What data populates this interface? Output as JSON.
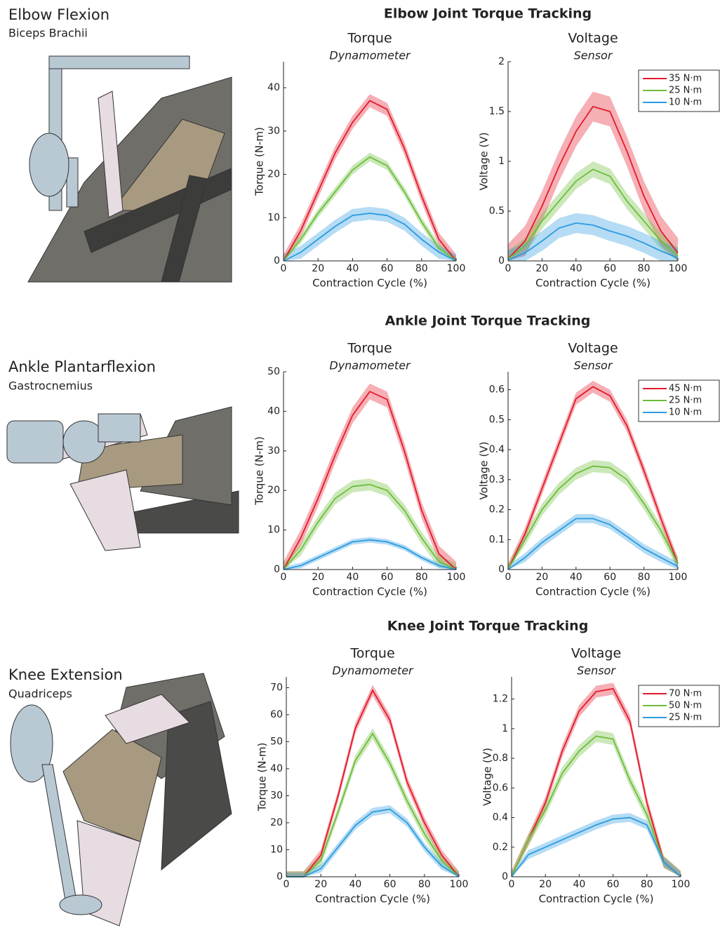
{
  "rows": [
    {
      "heading": "Elbow Joint Torque Tracking",
      "joint": "Elbow Flexion",
      "muscle": "Biceps Brachii"
    },
    {
      "heading": "Ankle Joint Torque Tracking",
      "joint": "Ankle Plantarflexion",
      "muscle": "Gastrocnemius"
    },
    {
      "heading": "Knee Joint Torque Tracking",
      "joint": "Knee Extension",
      "muscle": "Quadriceps"
    }
  ],
  "chart_data": [
    {
      "type": "line",
      "title": "Torque",
      "subtitle": "Dynamometer",
      "xlabel": "Contraction Cycle (%)",
      "ylabel": "Torque (N-m)",
      "x": [
        0,
        10,
        20,
        30,
        40,
        50,
        60,
        70,
        80,
        90,
        100
      ],
      "xlim": [
        0,
        100
      ],
      "xticks": [
        0,
        20,
        40,
        60,
        80,
        100
      ],
      "ylim": [
        0,
        46
      ],
      "yticks": [
        0,
        10,
        20,
        30,
        40
      ],
      "series": [
        {
          "color": "#e31a2a",
          "values": [
            0,
            7,
            16,
            25,
            32,
            37,
            35,
            26,
            15,
            5,
            0
          ],
          "error": 1.5
        },
        {
          "color": "#6cbd3a",
          "values": [
            0,
            5,
            11,
            16,
            21,
            24,
            22,
            16,
            9,
            3,
            0
          ],
          "error": 1
        },
        {
          "color": "#2b9be0",
          "values": [
            0,
            2,
            5,
            8,
            10.5,
            11,
            10.5,
            8.5,
            5,
            2,
            0
          ],
          "error": 1.5
        }
      ]
    },
    {
      "type": "line",
      "title": "Voltage",
      "subtitle": "Sensor",
      "xlabel": "Contraction Cycle (%)",
      "ylabel": "Voltage (V)",
      "legend": "upper right",
      "x": [
        0,
        10,
        20,
        30,
        40,
        50,
        60,
        70,
        80,
        90,
        100
      ],
      "xlim": [
        0,
        100
      ],
      "xticks": [
        0,
        20,
        40,
        60,
        80,
        100
      ],
      "ylim": [
        0,
        2
      ],
      "yticks": [
        0,
        0.5,
        1,
        1.5,
        2
      ],
      "series": [
        {
          "name": "35 N·m",
          "color": "#e31a2a",
          "values": [
            0.02,
            0.2,
            0.55,
            0.95,
            1.3,
            1.55,
            1.5,
            1.1,
            0.65,
            0.3,
            0.08
          ],
          "error": 0.15
        },
        {
          "name": "25 N·m",
          "color": "#6cbd3a",
          "values": [
            0.02,
            0.15,
            0.4,
            0.6,
            0.8,
            0.92,
            0.85,
            0.6,
            0.4,
            0.2,
            0.05
          ],
          "error": 0.08
        },
        {
          "name": "10 N·m",
          "color": "#2b9be0",
          "values": [
            0.01,
            0.08,
            0.2,
            0.33,
            0.38,
            0.36,
            0.3,
            0.25,
            0.18,
            0.1,
            0.03
          ],
          "error": 0.1
        }
      ]
    },
    {
      "type": "line",
      "title": "Torque",
      "subtitle": "Dynamometer",
      "xlabel": "Contraction Cycle (%)",
      "ylabel": "Torque (N-m)",
      "x": [
        0,
        10,
        20,
        30,
        40,
        50,
        60,
        70,
        80,
        90,
        100
      ],
      "xlim": [
        0,
        100
      ],
      "xticks": [
        0,
        20,
        40,
        60,
        80,
        100
      ],
      "ylim": [
        0,
        50
      ],
      "yticks": [
        0,
        10,
        20,
        30,
        40,
        50
      ],
      "series": [
        {
          "color": "#e31a2a",
          "values": [
            0,
            8,
            18,
            29,
            39,
            45,
            43,
            30,
            15,
            4,
            0
          ],
          "error": 2
        },
        {
          "color": "#6cbd3a",
          "values": [
            0,
            5,
            12,
            18,
            21,
            21.5,
            20,
            15,
            8,
            2,
            0
          ],
          "error": 1.5
        },
        {
          "color": "#2b9be0",
          "values": [
            0,
            1,
            3,
            5,
            7,
            7.5,
            7,
            5.5,
            3,
            1,
            0
          ],
          "error": 0.7
        }
      ]
    },
    {
      "type": "line",
      "title": "Voltage",
      "subtitle": "Sensor",
      "xlabel": "Contraction Cycle (%)",
      "ylabel": "Voltage (V)",
      "legend": "upper right",
      "x": [
        0,
        10,
        20,
        30,
        40,
        50,
        60,
        70,
        80,
        90,
        100
      ],
      "xlim": [
        0,
        100
      ],
      "xticks": [
        0,
        20,
        40,
        60,
        80,
        100
      ],
      "ylim": [
        0,
        0.66
      ],
      "yticks": [
        0,
        0.1,
        0.2,
        0.3,
        0.4,
        0.5,
        0.6
      ],
      "series": [
        {
          "name": "45 N·m",
          "color": "#e31a2a",
          "values": [
            0,
            0.12,
            0.27,
            0.42,
            0.57,
            0.61,
            0.58,
            0.48,
            0.33,
            0.17,
            0.02
          ],
          "error": 0.02
        },
        {
          "name": "25 N·m",
          "color": "#6cbd3a",
          "values": [
            0,
            0.1,
            0.2,
            0.27,
            0.32,
            0.345,
            0.34,
            0.3,
            0.22,
            0.13,
            0.02
          ],
          "error": 0.02
        },
        {
          "name": "10 N·m",
          "color": "#2b9be0",
          "values": [
            0,
            0.04,
            0.09,
            0.13,
            0.17,
            0.17,
            0.15,
            0.11,
            0.07,
            0.04,
            0.01
          ],
          "error": 0.015
        }
      ]
    },
    {
      "type": "line",
      "title": "Torque",
      "subtitle": "Dynamometer",
      "xlabel": "Contraction Cycle (%)",
      "ylabel": "Torque (N-m)",
      "x": [
        0,
        10,
        20,
        30,
        40,
        50,
        60,
        70,
        80,
        90,
        100
      ],
      "xlim": [
        0,
        100
      ],
      "xticks": [
        0,
        20,
        40,
        60,
        80,
        100
      ],
      "ylim": [
        0,
        74
      ],
      "yticks": [
        0,
        10,
        20,
        30,
        40,
        50,
        60,
        70
      ],
      "series": [
        {
          "color": "#e31a2a",
          "values": [
            0,
            0,
            8,
            30,
            55,
            69,
            58,
            35,
            20,
            8,
            0
          ],
          "error": 2
        },
        {
          "color": "#6cbd3a",
          "values": [
            0,
            0,
            6,
            24,
            43,
            53,
            42,
            28,
            16,
            6,
            0
          ],
          "error": 2
        },
        {
          "color": "#2b9be0",
          "values": [
            0,
            0,
            3,
            11,
            19,
            24,
            25,
            20,
            11,
            4,
            0
          ],
          "error": 1.5
        }
      ]
    },
    {
      "type": "line",
      "title": "Voltage",
      "subtitle": "Sensor",
      "xlabel": "Contraction Cycle (%)",
      "ylabel": "Voltage (V)",
      "legend": "upper right",
      "x": [
        0,
        10,
        20,
        30,
        40,
        50,
        60,
        70,
        80,
        90,
        100
      ],
      "xlim": [
        0,
        100
      ],
      "xticks": [
        0,
        20,
        40,
        60,
        80,
        100
      ],
      "ylim": [
        0,
        1.35
      ],
      "yticks": [
        0,
        0.2,
        0.4,
        0.6,
        0.8,
        1,
        1.2
      ],
      "series": [
        {
          "name": "70 N·m",
          "color": "#e31a2a",
          "values": [
            0,
            0.25,
            0.5,
            0.85,
            1.12,
            1.25,
            1.27,
            1.05,
            0.5,
            0.1,
            0
          ],
          "error": 0.04
        },
        {
          "name": "50 N·m",
          "color": "#6cbd3a",
          "values": [
            0,
            0.25,
            0.45,
            0.7,
            0.85,
            0.95,
            0.93,
            0.65,
            0.42,
            0.1,
            0
          ],
          "error": 0.04
        },
        {
          "name": "25 N·m",
          "color": "#2b9be0",
          "values": [
            0,
            0.15,
            0.2,
            0.25,
            0.3,
            0.35,
            0.39,
            0.4,
            0.35,
            0.1,
            0
          ],
          "error": 0.03
        }
      ]
    }
  ]
}
